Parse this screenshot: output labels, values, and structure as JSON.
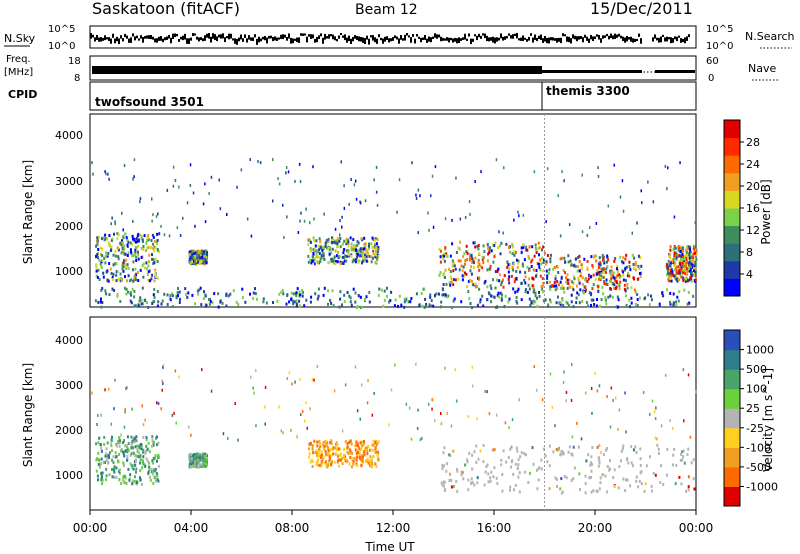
{
  "header": {
    "title": "Saskatoon (fitACF)",
    "beam": "Beam 12",
    "date": "15/Dec/2011"
  },
  "noise_panel": {
    "left_label": "N.Sky",
    "right_label": "N.Search",
    "left_ticks": [
      "10^5",
      "10^0"
    ],
    "right_ticks": [
      "10^5",
      "10^0"
    ]
  },
  "freq_panel": {
    "left_label_1": "Freq.",
    "left_label_2": "[MHz]",
    "left_ticks": [
      "18",
      "8"
    ],
    "right_label": "Nave",
    "right_ticks": [
      "60",
      "0"
    ]
  },
  "cpid_panel": {
    "label": "CPID",
    "segments": [
      {
        "name": "twofsound 3501",
        "start_h": 0,
        "end_h": 18.0
      },
      {
        "name": "themis 3300",
        "start_h": 18.0,
        "end_h": 24
      }
    ]
  },
  "chart_data": [
    {
      "type": "heatmap",
      "name": "Power",
      "xlabel": "",
      "ylabel": "Slant Range [km]",
      "ylim": [
        180,
        4600
      ],
      "xlim": [
        0,
        24
      ],
      "y_ticks": [
        "4000",
        "3000",
        "2000",
        "1000"
      ],
      "colorbar_label": "Power [dB]",
      "colorbar_ticks": [
        "28",
        "24",
        "20",
        "16",
        "12",
        "8",
        "4"
      ],
      "colorbar_colors": [
        "#0000ff",
        "#1e3aa8",
        "#2e6f7a",
        "#3c8f5c",
        "#7bd24a",
        "#d8d820",
        "#f0a020",
        "#ff6a00",
        "#ff2a00",
        "#e00000"
      ],
      "echo_regions": [
        {
          "x": [
            0.2,
            2.7
          ],
          "y": [
            800,
            1900
          ],
          "level": "mixed"
        },
        {
          "x": [
            3.9,
            4.6
          ],
          "y": [
            1200,
            1500
          ],
          "level": "mixed"
        },
        {
          "x": [
            8.6,
            11.4
          ],
          "y": [
            1200,
            1800
          ],
          "level": "mixed"
        },
        {
          "x": [
            13.8,
            18.0
          ],
          "y": [
            650,
            1700
          ],
          "level": "high"
        },
        {
          "x": [
            18.0,
            21.8
          ],
          "y": [
            600,
            1400
          ],
          "level": "high"
        },
        {
          "x": [
            22.8,
            24.0
          ],
          "y": [
            800,
            1600
          ],
          "level": "high"
        },
        {
          "x": [
            0.0,
            24.0
          ],
          "y": [
            200,
            650
          ],
          "level": "ground"
        }
      ]
    },
    {
      "type": "heatmap",
      "name": "Velocity",
      "xlabel": "Time UT",
      "ylabel": "Slant Range [km]",
      "ylim": [
        180,
        4600
      ],
      "xlim": [
        0,
        24
      ],
      "y_ticks": [
        "4000",
        "3000",
        "2000",
        "1000"
      ],
      "x_ticks": [
        "00:00",
        "04:00",
        "08:00",
        "12:00",
        "16:00",
        "20:00",
        "00:00"
      ],
      "colorbar_label": "Velocity [m s^-1]",
      "colorbar_ticks": [
        "1000",
        "500",
        "100",
        "25",
        "-25",
        "-100",
        "-500",
        "-1000"
      ],
      "colorbar_colors": [
        "#2a4fb8",
        "#2e7c8c",
        "#4aa46a",
        "#6ccf3c",
        "#b4b4b4",
        "#ffd020",
        "#f0a020",
        "#ff6a00",
        "#e00000"
      ],
      "echo_regions": [
        {
          "x": [
            0.2,
            2.7
          ],
          "y": [
            800,
            1900
          ],
          "level": "toward"
        },
        {
          "x": [
            3.9,
            4.6
          ],
          "y": [
            1200,
            1500
          ],
          "level": "toward"
        },
        {
          "x": [
            8.6,
            11.4
          ],
          "y": [
            1200,
            1800
          ],
          "level": "away"
        },
        {
          "x": [
            13.8,
            24.0
          ],
          "y": [
            600,
            1700
          ],
          "level": "ground"
        }
      ]
    }
  ]
}
